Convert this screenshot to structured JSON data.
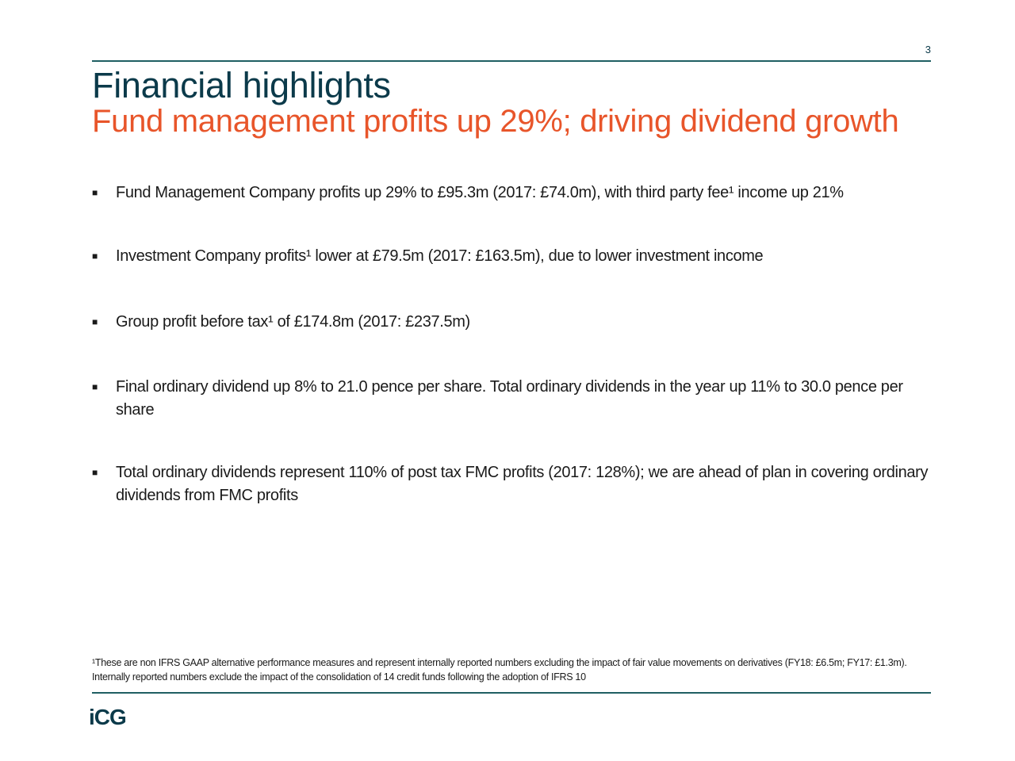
{
  "page_number": "3",
  "title": "Financial highlights",
  "subtitle": "Fund management profits up 29%; driving dividend growth",
  "colors": {
    "title": "#0b3a4a",
    "subtitle": "#e8552a",
    "rule": "#1f5f63"
  },
  "bullet_icon": "square-bullet-icon",
  "bullets": [
    {
      "text": "Fund Management Company profits up 29% to £95.3m (2017: £74.0m), with third party fee¹ income up 21%"
    },
    {
      "text": "Investment Company profits¹ lower at £79.5m (2017: £163.5m), due to lower investment income"
    },
    {
      "text": "Group profit before tax¹ of £174.8m (2017: £237.5m)"
    },
    {
      "text": "Final ordinary dividend up 8% to 21.0 pence per share. Total ordinary dividends in the year up 11% to 30.0 pence per share"
    },
    {
      "text": "Total ordinary dividends represent 110% of post tax FMC profits (2017: 128%); we are ahead of plan in covering ordinary dividends from FMC profits"
    }
  ],
  "footnote": "¹These are non IFRS GAAP alternative performance measures and represent internally reported numbers excluding the impact of fair value movements on derivatives (FY18: £6.5m; FY17: £1.3m). Internally reported numbers exclude the impact of the consolidation of 14 credit funds following the adoption of IFRS 10",
  "logo": "iCG"
}
